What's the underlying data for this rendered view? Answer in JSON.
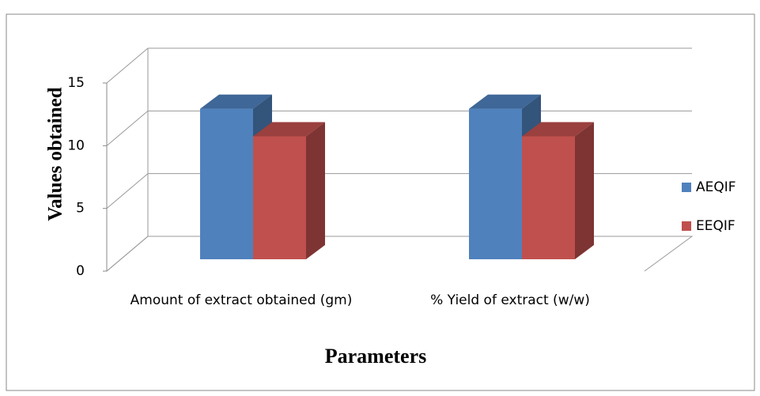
{
  "chart_data": {
    "type": "bar3d",
    "categories": [
      "Amount of extract obtained (gm)",
      "% Yield of extract (w/w)"
    ],
    "series": [
      {
        "name": "AEQIF",
        "color": "#4f81bd",
        "values": [
          12,
          12
        ]
      },
      {
        "name": "EEQIF",
        "color": "#c0504d",
        "values": [
          9.8,
          9.8
        ]
      }
    ],
    "ylim": [
      0,
      15
    ],
    "yticks": [
      0,
      5,
      10,
      15
    ],
    "y_label": "Values obtained",
    "x_label": "Parameters",
    "grid": true,
    "legend": "right"
  }
}
